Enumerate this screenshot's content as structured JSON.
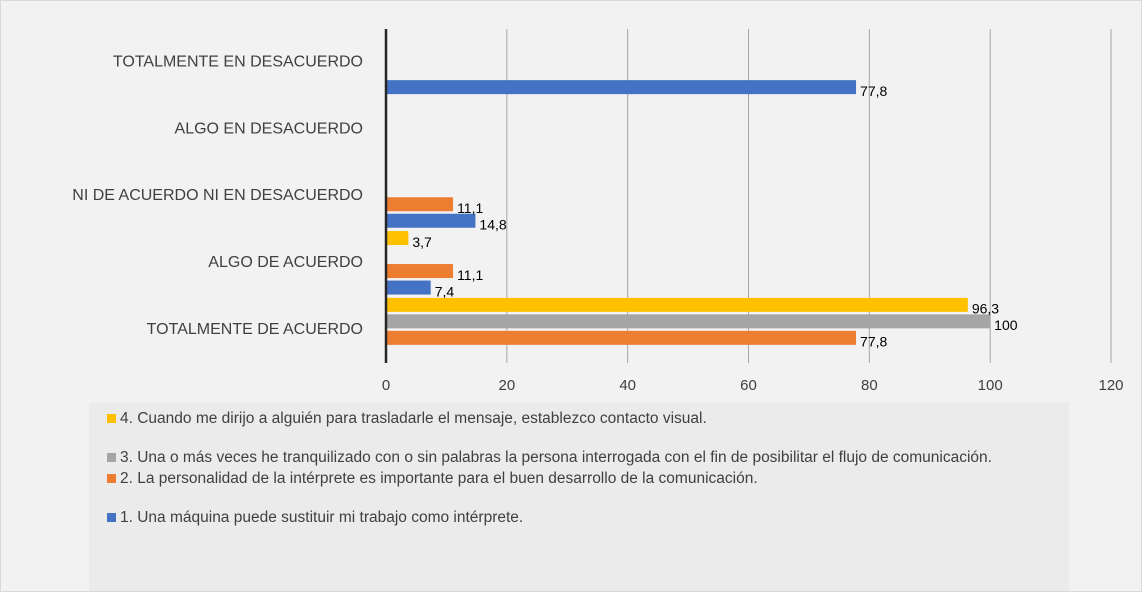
{
  "chart_data": {
    "type": "barh",
    "categories": [
      "TOTALMENTE EN DESACUERDO",
      "ALGO EN DESACUERDO",
      "NI DE ACUERDO NI EN DESACUERDO",
      "ALGO DE ACUERDO",
      "TOTALMENTE DE ACUERDO"
    ],
    "series": [
      {
        "name": "1. Una máquina puede sustituir mi trabajo como intérprete.",
        "color": "#4472c4",
        "values": [
          77.8,
          null,
          14.8,
          7.4,
          null
        ],
        "value_labels": [
          "77,8",
          null,
          "14,8",
          "7,4",
          null
        ]
      },
      {
        "name": "2. La personalidad de la intérprete es importante para el buen desarrollo de la comunicación.",
        "color": "#ed7d31",
        "values": [
          null,
          null,
          11.1,
          11.1,
          77.8
        ],
        "value_labels": [
          null,
          null,
          "11,1",
          "11,1",
          "77,8"
        ]
      },
      {
        "name": "3. Una o más veces he tranquilizado con o sin palabras la persona interrogada con el fin de posibilitar el flujo de comunicación.",
        "color": "#a5a5a5",
        "values": [
          null,
          null,
          null,
          null,
          100
        ]
      },
      {
        "name": "4. Cuando me dirijo a alguién para trasladarle el mensaje, establezco contacto visual.",
        "color": "#ffc000",
        "values": [
          null,
          null,
          null,
          3.7,
          96.3
        ],
        "value_labels": [
          null,
          null,
          null,
          "3,7",
          "96,3"
        ]
      }
    ],
    "xlim": [
      0,
      120
    ],
    "xticks": [
      0,
      20,
      40,
      60,
      80,
      100,
      120
    ],
    "grid": true,
    "legend": "bottom"
  }
}
